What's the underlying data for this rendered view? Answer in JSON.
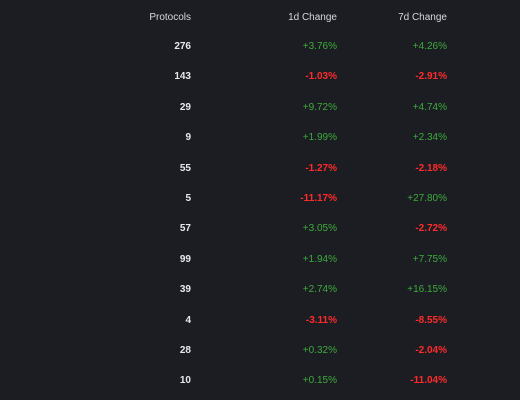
{
  "header": {
    "protocols_label": "Protocols",
    "change_1d_label": "1d Change",
    "change_7d_label": "7d Change"
  },
  "colors": {
    "background": "#1c1d22",
    "positive": "#3dab3d",
    "negative": "#ff2b2b",
    "text": "#e8e9ec"
  },
  "rows": [
    {
      "protocols": "276",
      "change_1d": "+3.76%",
      "change_7d": "+4.26%",
      "dir_1d": "up",
      "dir_7d": "up"
    },
    {
      "protocols": "143",
      "change_1d": "-1.03%",
      "change_7d": "-2.91%",
      "dir_1d": "down",
      "dir_7d": "down"
    },
    {
      "protocols": "29",
      "change_1d": "+9.72%",
      "change_7d": "+4.74%",
      "dir_1d": "up",
      "dir_7d": "up"
    },
    {
      "protocols": "9",
      "change_1d": "+1.99%",
      "change_7d": "+2.34%",
      "dir_1d": "up",
      "dir_7d": "up"
    },
    {
      "protocols": "55",
      "change_1d": "-1.27%",
      "change_7d": "-2.18%",
      "dir_1d": "down",
      "dir_7d": "down"
    },
    {
      "protocols": "5",
      "change_1d": "-11.17%",
      "change_7d": "+27.80%",
      "dir_1d": "down",
      "dir_7d": "up"
    },
    {
      "protocols": "57",
      "change_1d": "+3.05%",
      "change_7d": "-2.72%",
      "dir_1d": "up",
      "dir_7d": "down"
    },
    {
      "protocols": "99",
      "change_1d": "+1.94%",
      "change_7d": "+7.75%",
      "dir_1d": "up",
      "dir_7d": "up"
    },
    {
      "protocols": "39",
      "change_1d": "+2.74%",
      "change_7d": "+16.15%",
      "dir_1d": "up",
      "dir_7d": "up"
    },
    {
      "protocols": "4",
      "change_1d": "-3.11%",
      "change_7d": "-8.55%",
      "dir_1d": "down",
      "dir_7d": "down"
    },
    {
      "protocols": "28",
      "change_1d": "+0.32%",
      "change_7d": "-2.04%",
      "dir_1d": "up",
      "dir_7d": "down"
    },
    {
      "protocols": "10",
      "change_1d": "+0.15%",
      "change_7d": "-11.04%",
      "dir_1d": "up",
      "dir_7d": "down"
    }
  ]
}
